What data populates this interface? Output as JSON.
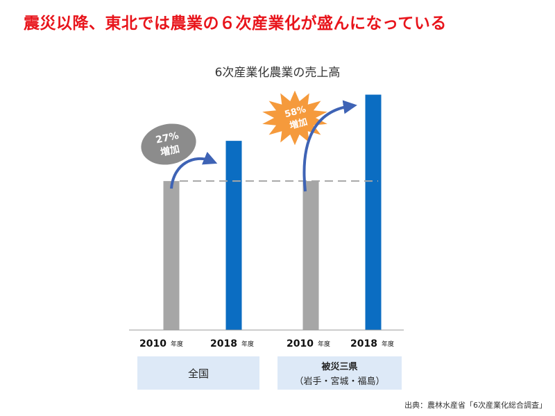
{
  "headline": "震災以降、東北では農業の６次産業化が盛んになっている",
  "source": "出典：農林水産省「6次産業化総合調査」",
  "colors": {
    "headline": "#e8141b",
    "bar_2010": "#a6a6a6",
    "bar_2018": "#0b6dc2",
    "group_box": "#dde9f7",
    "badge_grey": "#8c8c8c",
    "badge_orange": "#f59a3c",
    "arrow": "#3e63b5"
  },
  "groups": {
    "national": {
      "name": "全国"
    },
    "disaster": {
      "name": "被災三県",
      "sub": "（岩手・宮城・福島）"
    }
  },
  "badges": {
    "national": {
      "pct": "27%",
      "label": "増加",
      "shape": "ellipse"
    },
    "disaster": {
      "pct": "58%",
      "label": "増加",
      "shape": "starburst"
    }
  },
  "chart_data": {
    "type": "bar",
    "title": "6次産業化農業の売上高",
    "categories": [
      "2010",
      "2018",
      "2010",
      "2018"
    ],
    "category_suffix": "年度",
    "groups": [
      "全国",
      "被災三県"
    ],
    "values": [
      100,
      127,
      100,
      158
    ],
    "ylim": [
      0,
      175
    ],
    "reference_line": 100,
    "grid": false,
    "axes_visible": false
  }
}
